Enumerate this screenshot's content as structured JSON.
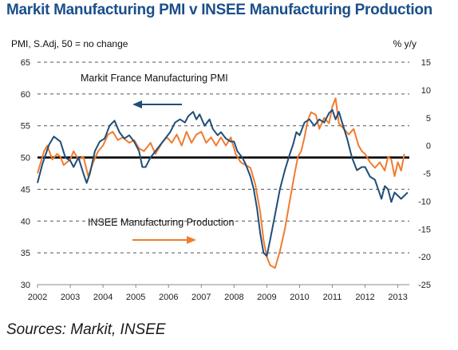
{
  "title": "Markit Manufacturing PMI v INSEE Manufacturing Production",
  "source": "Sources: Markit, INSEE",
  "chart_data": {
    "type": "line",
    "left_axis_label": "PMI, S.Adj, 50 = no change",
    "right_axis_label": "% y/y",
    "y_left": {
      "min": 30,
      "max": 65,
      "ticks": [
        65,
        60,
        55,
        50,
        45,
        40,
        35,
        30
      ]
    },
    "y_right": {
      "min": -25,
      "max": 15,
      "ticks": [
        15,
        10,
        5,
        0,
        -5,
        -10,
        -15,
        -20,
        -25
      ]
    },
    "x_range": [
      2002,
      2013.35
    ],
    "x_ticks": [
      "2002",
      "2003",
      "2004",
      "2005",
      "2006",
      "2007",
      "2008",
      "2009",
      "2010",
      "2011",
      "2012",
      "2013"
    ],
    "reference_line": {
      "axis": "left",
      "value": 50
    },
    "annotations": [
      {
        "text": "Markit France Manufacturing PMI",
        "arrow": "left"
      },
      {
        "text": "INSEE Manufacturing Production",
        "arrow": "right"
      }
    ],
    "series": [
      {
        "name": "Markit France Manufacturing PMI",
        "axis": "left",
        "color": "#1f4e79",
        "points": [
          [
            2002.0,
            46
          ],
          [
            2002.15,
            49
          ],
          [
            2002.35,
            52
          ],
          [
            2002.5,
            53.3
          ],
          [
            2002.7,
            52.5
          ],
          [
            2002.85,
            50
          ],
          [
            2003.0,
            49.5
          ],
          [
            2003.1,
            48.5
          ],
          [
            2003.25,
            50
          ],
          [
            2003.4,
            47.5
          ],
          [
            2003.5,
            46
          ],
          [
            2003.6,
            47.5
          ],
          [
            2003.75,
            51
          ],
          [
            2003.9,
            52.5
          ],
          [
            2004.05,
            53
          ],
          [
            2004.2,
            55
          ],
          [
            2004.35,
            55.8
          ],
          [
            2004.5,
            54
          ],
          [
            2004.65,
            53
          ],
          [
            2004.8,
            53.5
          ],
          [
            2004.95,
            52.5
          ],
          [
            2005.1,
            51
          ],
          [
            2005.2,
            48.5
          ],
          [
            2005.3,
            48.5
          ],
          [
            2005.45,
            50
          ],
          [
            2005.6,
            51
          ],
          [
            2005.75,
            52
          ],
          [
            2005.9,
            53
          ],
          [
            2006.05,
            54
          ],
          [
            2006.2,
            55.5
          ],
          [
            2006.35,
            56
          ],
          [
            2006.5,
            55.5
          ],
          [
            2006.6,
            56.5
          ],
          [
            2006.75,
            57.2
          ],
          [
            2006.85,
            56
          ],
          [
            2006.95,
            56.8
          ],
          [
            2007.1,
            55
          ],
          [
            2007.25,
            56
          ],
          [
            2007.35,
            54.5
          ],
          [
            2007.5,
            53.5
          ],
          [
            2007.6,
            54
          ],
          [
            2007.75,
            53
          ],
          [
            2007.9,
            52.5
          ],
          [
            2008.0,
            52.5
          ],
          [
            2008.1,
            51
          ],
          [
            2008.25,
            50
          ],
          [
            2008.35,
            49
          ],
          [
            2008.5,
            47
          ],
          [
            2008.6,
            45
          ],
          [
            2008.7,
            42
          ],
          [
            2008.8,
            38
          ],
          [
            2008.9,
            35
          ],
          [
            2009.0,
            34.5
          ],
          [
            2009.1,
            37
          ],
          [
            2009.25,
            41
          ],
          [
            2009.4,
            45
          ],
          [
            2009.55,
            48
          ],
          [
            2009.7,
            50.5
          ],
          [
            2009.8,
            52
          ],
          [
            2009.9,
            54
          ],
          [
            2010.0,
            53.5
          ],
          [
            2010.15,
            55.5
          ],
          [
            2010.3,
            56
          ],
          [
            2010.45,
            55
          ],
          [
            2010.6,
            56
          ],
          [
            2010.75,
            55.5
          ],
          [
            2010.9,
            57
          ],
          [
            2011.0,
            57.5
          ],
          [
            2011.1,
            56
          ],
          [
            2011.2,
            57.2
          ],
          [
            2011.3,
            55.5
          ],
          [
            2011.45,
            53
          ],
          [
            2011.6,
            50
          ],
          [
            2011.75,
            48
          ],
          [
            2011.9,
            48.5
          ],
          [
            2012.0,
            48.5
          ],
          [
            2012.15,
            47
          ],
          [
            2012.3,
            46.5
          ],
          [
            2012.4,
            45
          ],
          [
            2012.5,
            43.5
          ],
          [
            2012.6,
            45.5
          ],
          [
            2012.7,
            45
          ],
          [
            2012.8,
            43
          ],
          [
            2012.9,
            44.5
          ],
          [
            2013.0,
            44
          ],
          [
            2013.1,
            43.5
          ],
          [
            2013.2,
            44
          ],
          [
            2013.3,
            44.5
          ]
        ]
      },
      {
        "name": "INSEE Manufacturing Production",
        "axis": "right",
        "color": "#f07c2f",
        "points": [
          [
            2002.0,
            -5
          ],
          [
            2002.1,
            -3
          ],
          [
            2002.2,
            -1
          ],
          [
            2002.3,
            0
          ],
          [
            2002.45,
            -2.5
          ],
          [
            2002.6,
            -1.5
          ],
          [
            2002.7,
            -2
          ],
          [
            2002.8,
            -3.5
          ],
          [
            2003.0,
            -2.5
          ],
          [
            2003.1,
            -1
          ],
          [
            2003.25,
            -2.5
          ],
          [
            2003.4,
            -2
          ],
          [
            2003.55,
            -5.5
          ],
          [
            2003.7,
            -3
          ],
          [
            2003.85,
            -1
          ],
          [
            2004.0,
            0
          ],
          [
            2004.15,
            2
          ],
          [
            2004.3,
            2.5
          ],
          [
            2004.45,
            1
          ],
          [
            2004.6,
            1.5
          ],
          [
            2004.8,
            0.5
          ],
          [
            2004.95,
            1
          ],
          [
            2005.1,
            -0.5
          ],
          [
            2005.25,
            -1
          ],
          [
            2005.45,
            0.5
          ],
          [
            2005.6,
            -1.5
          ],
          [
            2005.8,
            0.5
          ],
          [
            2005.95,
            1.5
          ],
          [
            2006.1,
            0.5
          ],
          [
            2006.25,
            2
          ],
          [
            2006.4,
            0
          ],
          [
            2006.55,
            2.5
          ],
          [
            2006.7,
            0.5
          ],
          [
            2006.85,
            2
          ],
          [
            2007.0,
            2.5
          ],
          [
            2007.15,
            0.5
          ],
          [
            2007.3,
            1.5
          ],
          [
            2007.45,
            0
          ],
          [
            2007.6,
            1.5
          ],
          [
            2007.75,
            0
          ],
          [
            2007.9,
            1.5
          ],
          [
            2008.05,
            -1.5
          ],
          [
            2008.2,
            -3
          ],
          [
            2008.35,
            -3.5
          ],
          [
            2008.5,
            -4
          ],
          [
            2008.65,
            -7
          ],
          [
            2008.8,
            -12
          ],
          [
            2008.9,
            -17
          ],
          [
            2009.0,
            -20
          ],
          [
            2009.1,
            -21.5
          ],
          [
            2009.25,
            -22
          ],
          [
            2009.4,
            -19
          ],
          [
            2009.55,
            -15
          ],
          [
            2009.7,
            -10
          ],
          [
            2009.85,
            -5
          ],
          [
            2009.95,
            -2
          ],
          [
            2010.05,
            -1
          ],
          [
            2010.15,
            1.5
          ],
          [
            2010.25,
            4.5
          ],
          [
            2010.35,
            6
          ],
          [
            2010.5,
            5.5
          ],
          [
            2010.6,
            3
          ],
          [
            2010.75,
            5
          ],
          [
            2010.9,
            4
          ],
          [
            2011.0,
            7
          ],
          [
            2011.1,
            8.5
          ],
          [
            2011.2,
            4
          ],
          [
            2011.35,
            3
          ],
          [
            2011.5,
            2
          ],
          [
            2011.65,
            3
          ],
          [
            2011.8,
            0
          ],
          [
            2011.9,
            -1
          ],
          [
            2012.0,
            -1.5
          ],
          [
            2012.15,
            -3
          ],
          [
            2012.3,
            -4
          ],
          [
            2012.45,
            -3
          ],
          [
            2012.6,
            -4.5
          ],
          [
            2012.7,
            -2
          ],
          [
            2012.8,
            -2.5
          ],
          [
            2012.9,
            -5.5
          ],
          [
            2013.0,
            -3
          ],
          [
            2013.1,
            -4.5
          ],
          [
            2013.2,
            -1.5
          ]
        ]
      }
    ]
  }
}
